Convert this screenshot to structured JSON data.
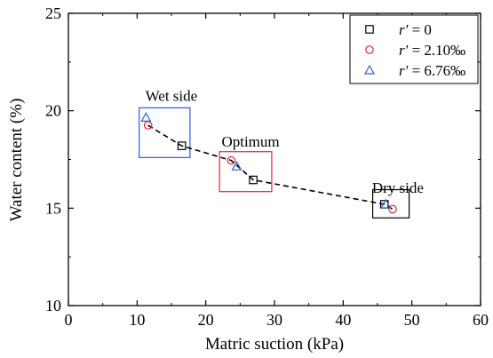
{
  "chart_data": {
    "type": "scatter",
    "xlabel": "Matric suction (kPa)",
    "ylabel": "Water content (%)",
    "xlim": [
      0,
      60
    ],
    "ylim": [
      10,
      25
    ],
    "xticks": [
      0,
      10,
      20,
      30,
      40,
      50,
      60
    ],
    "yticks": [
      10,
      15,
      20,
      25
    ],
    "xtick_labels": [
      "0",
      "10",
      "20",
      "30",
      "40",
      "50",
      "60"
    ],
    "ytick_labels": [
      "10",
      "15",
      "20",
      "25"
    ],
    "grid": false,
    "legend_position": "top-right",
    "series": [
      {
        "name": "r′ = 0",
        "name_italic": "r′",
        "name_rest": " = 0",
        "marker": "square",
        "color": "#000000",
        "x": [
          16.5,
          26.9,
          46.0
        ],
        "y": [
          18.2,
          16.45,
          15.2
        ]
      },
      {
        "name": "r′ = 2.10‰",
        "name_italic": "r′",
        "name_rest": " = 2.10‰",
        "marker": "circle",
        "color": "#e8262b",
        "x": [
          11.6,
          23.7,
          47.2
        ],
        "y": [
          19.25,
          17.45,
          14.95
        ]
      },
      {
        "name": "r′ = 6.76‰",
        "name_italic": "r′",
        "name_rest": " = 6.76‰",
        "marker": "triangle",
        "color": "#2e5bdc",
        "x": [
          11.3,
          24.5,
          46.2
        ],
        "y": [
          19.65,
          17.15,
          15.2
        ]
      }
    ],
    "trend_line": {
      "style": "dashed",
      "color": "#000000",
      "x": [
        11.6,
        16.5,
        23.7,
        26.9,
        46.0,
        47.2
      ],
      "y": [
        19.25,
        18.2,
        17.45,
        16.45,
        15.2,
        14.95
      ]
    },
    "annotations": [
      {
        "text": "Wet side",
        "x": 11.2,
        "y": 20.5,
        "box": {
          "x0": 10.3,
          "x1": 17.7,
          "y0": 17.6,
          "y1": 20.15
        },
        "color": "#2e5bdc"
      },
      {
        "text": "Optimum",
        "x": 22.3,
        "y": 18.15,
        "box": {
          "x0": 22.0,
          "x1": 29.6,
          "y0": 15.85,
          "y1": 17.9
        },
        "color": "#e8262b"
      },
      {
        "text": "Dry side",
        "x": 44.2,
        "y": 15.8,
        "box": {
          "x0": 44.3,
          "x1": 49.6,
          "y0": 14.5,
          "y1": 15.95
        },
        "color": "#000000"
      }
    ]
  }
}
